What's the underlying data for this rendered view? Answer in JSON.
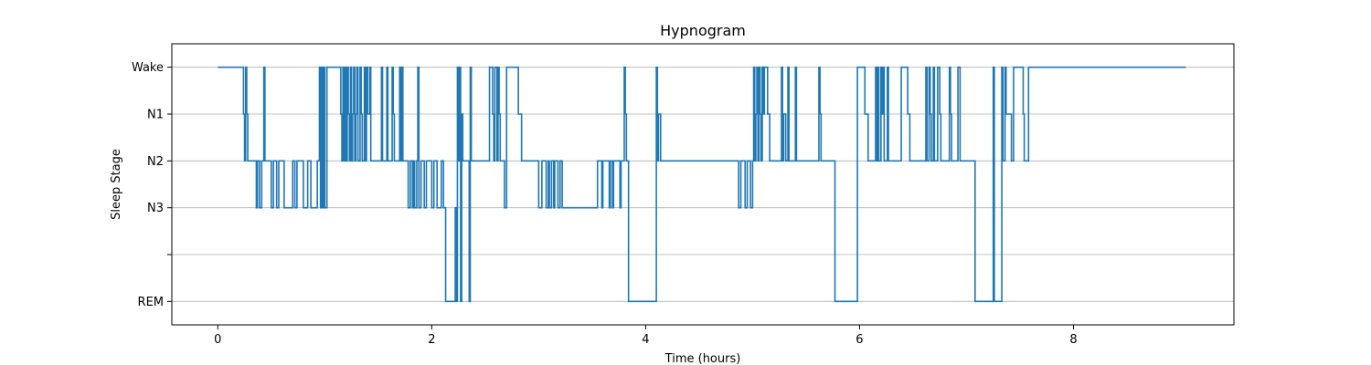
{
  "chart_data": {
    "type": "line",
    "step": true,
    "title": "Hypnogram",
    "xlabel": "Time (hours)",
    "ylabel": "Sleep Stage",
    "xlim": [
      -0.43,
      9.5
    ],
    "xticks": [
      0,
      2,
      4,
      6,
      8
    ],
    "y_categories": [
      "REM",
      "",
      "N3",
      "N2",
      "N1",
      "Wake"
    ],
    "ylim": [
      -0.5,
      5.5
    ],
    "grid": "horizontal",
    "line_color": "#1f77b4",
    "series": [
      {
        "stages": [
          [
            0.0,
            5
          ],
          [
            0.24,
            4
          ],
          [
            0.25,
            3
          ],
          [
            0.26,
            5
          ],
          [
            0.27,
            4
          ],
          [
            0.28,
            3
          ],
          [
            0.36,
            2
          ],
          [
            0.37,
            3
          ],
          [
            0.39,
            2
          ],
          [
            0.41,
            3
          ],
          [
            0.43,
            5
          ],
          [
            0.44,
            3
          ],
          [
            0.46,
            3
          ],
          [
            0.5,
            2
          ],
          [
            0.52,
            3
          ],
          [
            0.55,
            2
          ],
          [
            0.57,
            3
          ],
          [
            0.59,
            3
          ],
          [
            0.62,
            2
          ],
          [
            0.65,
            2
          ],
          [
            0.7,
            3
          ],
          [
            0.72,
            2
          ],
          [
            0.74,
            3
          ],
          [
            0.8,
            2
          ],
          [
            0.84,
            3
          ],
          [
            0.87,
            2
          ],
          [
            0.93,
            3
          ],
          [
            0.95,
            5
          ],
          [
            0.96,
            2
          ],
          [
            0.97,
            5
          ],
          [
            0.98,
            2
          ],
          [
            0.99,
            5
          ],
          [
            1.0,
            2
          ],
          [
            1.01,
            2
          ],
          [
            1.02,
            5
          ],
          [
            1.15,
            4
          ],
          [
            1.16,
            3
          ],
          [
            1.17,
            5
          ],
          [
            1.18,
            3
          ],
          [
            1.19,
            5
          ],
          [
            1.2,
            3
          ],
          [
            1.21,
            5
          ],
          [
            1.22,
            4
          ],
          [
            1.23,
            3
          ],
          [
            1.24,
            5
          ],
          [
            1.25,
            3
          ],
          [
            1.26,
            4
          ],
          [
            1.27,
            5
          ],
          [
            1.28,
            3
          ],
          [
            1.29,
            4
          ],
          [
            1.3,
            5
          ],
          [
            1.31,
            3
          ],
          [
            1.33,
            5
          ],
          [
            1.34,
            4
          ],
          [
            1.35,
            3
          ],
          [
            1.37,
            5
          ],
          [
            1.38,
            3
          ],
          [
            1.39,
            5
          ],
          [
            1.4,
            4
          ],
          [
            1.42,
            5
          ],
          [
            1.43,
            3
          ],
          [
            1.53,
            5
          ],
          [
            1.54,
            3
          ],
          [
            1.58,
            5
          ],
          [
            1.59,
            3
          ],
          [
            1.63,
            5
          ],
          [
            1.64,
            4
          ],
          [
            1.65,
            3
          ],
          [
            1.7,
            5
          ],
          [
            1.71,
            3
          ],
          [
            1.72,
            5
          ],
          [
            1.73,
            3
          ],
          [
            1.78,
            2
          ],
          [
            1.8,
            3
          ],
          [
            1.82,
            2
          ],
          [
            1.83,
            3
          ],
          [
            1.84,
            2
          ],
          [
            1.86,
            3
          ],
          [
            1.87,
            5
          ],
          [
            1.88,
            2
          ],
          [
            1.9,
            3
          ],
          [
            1.93,
            2
          ],
          [
            1.95,
            3
          ],
          [
            2.0,
            2
          ],
          [
            2.02,
            3
          ],
          [
            2.05,
            2
          ],
          [
            2.09,
            3
          ],
          [
            2.11,
            2
          ],
          [
            2.13,
            0
          ],
          [
            2.22,
            2
          ],
          [
            2.23,
            0
          ],
          [
            2.24,
            5
          ],
          [
            2.25,
            3
          ],
          [
            2.26,
            5
          ],
          [
            2.27,
            0
          ],
          [
            2.28,
            4
          ],
          [
            2.29,
            3
          ],
          [
            2.35,
            0
          ],
          [
            2.36,
            5
          ],
          [
            2.37,
            3
          ],
          [
            2.54,
            5
          ],
          [
            2.57,
            4
          ],
          [
            2.58,
            3
          ],
          [
            2.59,
            5
          ],
          [
            2.61,
            3
          ],
          [
            2.62,
            5
          ],
          [
            2.63,
            4
          ],
          [
            2.64,
            3
          ],
          [
            2.68,
            2
          ],
          [
            2.7,
            5
          ],
          [
            2.81,
            4
          ],
          [
            2.84,
            3
          ],
          [
            3.0,
            2
          ],
          [
            3.03,
            3
          ],
          [
            3.07,
            2
          ],
          [
            3.09,
            3
          ],
          [
            3.1,
            2
          ],
          [
            3.12,
            3
          ],
          [
            3.14,
            2
          ],
          [
            3.15,
            3
          ],
          [
            3.18,
            2
          ],
          [
            3.2,
            3
          ],
          [
            3.22,
            2
          ],
          [
            3.23,
            2
          ],
          [
            3.55,
            3
          ],
          [
            3.59,
            2
          ],
          [
            3.6,
            3
          ],
          [
            3.66,
            2
          ],
          [
            3.67,
            3
          ],
          [
            3.69,
            2
          ],
          [
            3.7,
            3
          ],
          [
            3.76,
            2
          ],
          [
            3.77,
            3
          ],
          [
            3.8,
            5
          ],
          [
            3.81,
            4
          ],
          [
            3.82,
            3
          ],
          [
            3.84,
            0
          ],
          [
            4.1,
            5
          ],
          [
            4.11,
            3
          ],
          [
            4.12,
            4
          ],
          [
            4.14,
            3
          ],
          [
            4.87,
            2
          ],
          [
            4.89,
            3
          ],
          [
            4.93,
            2
          ],
          [
            4.95,
            3
          ],
          [
            4.98,
            2
          ],
          [
            5.0,
            3
          ],
          [
            5.01,
            5
          ],
          [
            5.02,
            3
          ],
          [
            5.03,
            4
          ],
          [
            5.04,
            5
          ],
          [
            5.05,
            3
          ],
          [
            5.06,
            5
          ],
          [
            5.07,
            4
          ],
          [
            5.08,
            3
          ],
          [
            5.09,
            5
          ],
          [
            5.1,
            4
          ],
          [
            5.11,
            5
          ],
          [
            5.14,
            4
          ],
          [
            5.16,
            3
          ],
          [
            5.27,
            5
          ],
          [
            5.28,
            3
          ],
          [
            5.29,
            4
          ],
          [
            5.31,
            3
          ],
          [
            5.33,
            5
          ],
          [
            5.34,
            3
          ],
          [
            5.4,
            5
          ],
          [
            5.41,
            3
          ],
          [
            5.62,
            5
          ],
          [
            5.63,
            4
          ],
          [
            5.64,
            3
          ],
          [
            5.77,
            0
          ],
          [
            5.98,
            5
          ],
          [
            6.05,
            4
          ],
          [
            6.08,
            3
          ],
          [
            6.15,
            5
          ],
          [
            6.16,
            3
          ],
          [
            6.17,
            5
          ],
          [
            6.18,
            3
          ],
          [
            6.2,
            5
          ],
          [
            6.21,
            4
          ],
          [
            6.22,
            5
          ],
          [
            6.23,
            3
          ],
          [
            6.26,
            5
          ],
          [
            6.27,
            3
          ],
          [
            6.39,
            5
          ],
          [
            6.45,
            4
          ],
          [
            6.47,
            3
          ],
          [
            6.62,
            5
          ],
          [
            6.63,
            3
          ],
          [
            6.65,
            5
          ],
          [
            6.66,
            4
          ],
          [
            6.67,
            3
          ],
          [
            6.69,
            5
          ],
          [
            6.7,
            3
          ],
          [
            6.73,
            5
          ],
          [
            6.75,
            4
          ],
          [
            6.76,
            3
          ],
          [
            6.84,
            5
          ],
          [
            6.85,
            4
          ],
          [
            6.86,
            3
          ],
          [
            6.92,
            5
          ],
          [
            6.94,
            3
          ],
          [
            7.08,
            0
          ],
          [
            7.25,
            5
          ],
          [
            7.26,
            0
          ],
          [
            7.33,
            5
          ],
          [
            7.34,
            3
          ],
          [
            7.36,
            5
          ],
          [
            7.37,
            4
          ],
          [
            7.42,
            3
          ],
          [
            7.44,
            5
          ],
          [
            7.53,
            4
          ],
          [
            7.54,
            3
          ],
          [
            7.58,
            5
          ],
          [
            9.05,
            5
          ]
        ]
      }
    ]
  }
}
